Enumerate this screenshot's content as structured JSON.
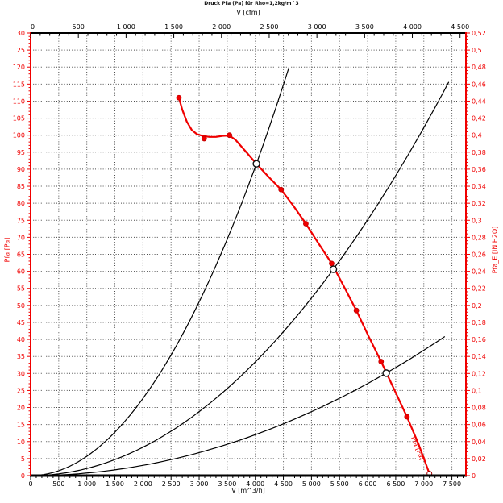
{
  "title": "Druck Pfa (Pa) für Rho=1,2kg/m^3",
  "colors": {
    "accent": "#f00000",
    "axis_black": "#000000",
    "grid": "#4a4a4a",
    "marker_fill": "#ffffff"
  },
  "chart_data": {
    "type": "line",
    "title": "Druck Pfa (Pa) für Rho=1,2kg/m^3",
    "grid": "dotted, both directions, 500 m^3/h x 5 Pa",
    "legend_position": "none",
    "axes": {
      "top": {
        "label": "V [cfm]",
        "min": 0,
        "max": 4560,
        "tick_step": 500,
        "cfm_to_m3h": 1.699,
        "tick_values": [
          0,
          500,
          1000,
          1500,
          2000,
          2500,
          3000,
          3500,
          4000,
          4500
        ],
        "tick_labels": [
          "0",
          "500",
          "1 000",
          "1 500",
          "2 000",
          "2 500",
          "3 000",
          "3 500",
          "4 000",
          "4 500"
        ]
      },
      "bottom": {
        "label": "V [m^3/h]",
        "min": 0,
        "max": 7750,
        "tick_step": 500,
        "tick_values": [
          0,
          500,
          1000,
          1500,
          2000,
          2500,
          3000,
          3500,
          4000,
          4500,
          5000,
          5500,
          6000,
          6500,
          7000,
          7500
        ],
        "tick_labels": [
          "0",
          "500",
          "1 000",
          "1 500",
          "2 000",
          "2 500",
          "3 000",
          "3 500",
          "4 000",
          "4 500",
          "5 000",
          "5 500",
          "6 000",
          "6 500",
          "7 000",
          "7 500"
        ]
      },
      "left": {
        "label": "Pfa [Pa]",
        "min": 0,
        "max": 130,
        "tick_step": 5,
        "tick_labels": [
          "0",
          "5",
          "10",
          "15",
          "20",
          "25",
          "30",
          "35",
          "40",
          "45",
          "50",
          "55",
          "60",
          "65",
          "70",
          "75",
          "80",
          "85",
          "90",
          "95",
          "100",
          "105",
          "110",
          "115",
          "120",
          "125",
          "130"
        ]
      },
      "right": {
        "label": "Pfa_E [iN H2O]",
        "min": 0,
        "max": 0.52,
        "tick_step": 0.02,
        "tick_labels": [
          "0",
          "0,02",
          "0,04",
          "0,06",
          "0,08",
          "0,1",
          "0,12",
          "0,14",
          "0,16",
          "0,18",
          "0,2",
          "0,22",
          "0,24",
          "0,26",
          "0,28",
          "0,3",
          "0,32",
          "0,34",
          "0,36",
          "0,38",
          "0,4",
          "0,42",
          "0,44",
          "0,46",
          "0,48",
          "0,5",
          "0,52"
        ]
      }
    },
    "fan_curve": {
      "label": "Pfa [Pa]",
      "color": "#f00000",
      "units": "V in m^3/h, P in Pa",
      "curve_points": [
        [
          2640,
          111
        ],
        [
          2700,
          107.5
        ],
        [
          2780,
          104
        ],
        [
          2870,
          101.5
        ],
        [
          2960,
          100.3
        ],
        [
          3060,
          99.8
        ],
        [
          3180,
          99.5
        ],
        [
          3300,
          99.5
        ],
        [
          3420,
          99.8
        ],
        [
          3540,
          99.9
        ],
        [
          3650,
          98.6
        ],
        [
          3830,
          95.2
        ],
        [
          4020,
          91.6
        ],
        [
          4240,
          87.7
        ],
        [
          4460,
          84
        ],
        [
          4680,
          79.2
        ],
        [
          4900,
          74
        ],
        [
          5130,
          68.1
        ],
        [
          5360,
          62.3
        ],
        [
          5580,
          55.5
        ],
        [
          5800,
          48.5
        ],
        [
          6020,
          40.8
        ],
        [
          6240,
          33.5
        ],
        [
          6470,
          25.4
        ],
        [
          6700,
          17.3
        ],
        [
          6900,
          9.5
        ],
        [
          7100,
          0.6
        ]
      ],
      "measured_points": [
        [
          2640,
          111
        ],
        [
          3090,
          99
        ],
        [
          3540,
          100
        ],
        [
          4460,
          84
        ],
        [
          4900,
          74
        ],
        [
          5360,
          62.3
        ],
        [
          5800,
          48.5
        ],
        [
          6240,
          33.5
        ],
        [
          6700,
          17.3
        ]
      ],
      "end_point": [
        7100,
        0.6
      ]
    },
    "system_curves": [
      {
        "name": "system-curve-steep",
        "v_op": 4020,
        "p_op": 91.6,
        "v_end": 4600
      },
      {
        "name": "system-curve-middle",
        "v_op": 5390,
        "p_op": 60.6,
        "v_end": 7445
      },
      {
        "name": "system-curve-shallow",
        "v_op": 6330,
        "p_op": 30.1,
        "v_end": 7374
      }
    ],
    "operating_points": [
      [
        4020,
        91.6
      ],
      [
        5390,
        60.6
      ],
      [
        6330,
        30.1
      ]
    ]
  }
}
